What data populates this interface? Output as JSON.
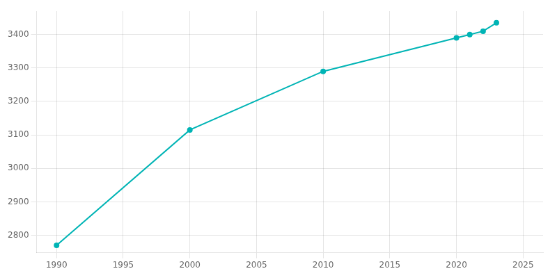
{
  "chart_data": {
    "type": "line",
    "x": [
      1990,
      2000,
      2010,
      2020,
      2021,
      2022,
      2023
    ],
    "values": [
      2770,
      3115,
      3290,
      3390,
      3400,
      3410,
      3435
    ],
    "color": "#00B4B5",
    "xlim": [
      1988.5,
      2026.5
    ],
    "ylim": [
      2748,
      3470
    ],
    "xticks": [
      1990,
      1995,
      2000,
      2005,
      2010,
      2015,
      2020,
      2025
    ],
    "yticks": [
      2800,
      2900,
      3000,
      3100,
      3200,
      3300,
      3400
    ],
    "grid": true
  }
}
